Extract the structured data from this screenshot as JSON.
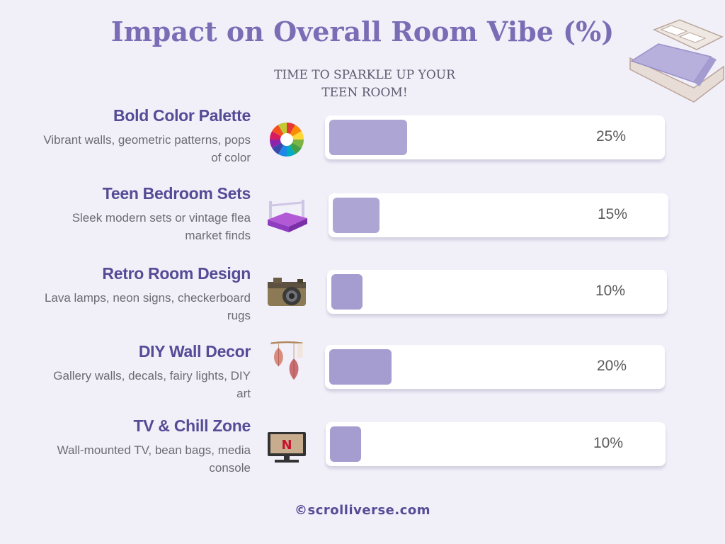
{
  "title": "Impact on Overall Room Vibe (%)",
  "subtitle": "TIME TO SPARKLE UP YOUR TEEN ROOM!",
  "footer": "©scrolliverse.com",
  "colors": {
    "bar": "#ada6d4",
    "bar_alt": "#a59dd0",
    "accent": "#554b96",
    "title": "#7a6db5",
    "background": "#f1eff8"
  },
  "chart_data": {
    "type": "bar",
    "orientation": "horizontal",
    "title": "Impact on Overall Room Vibe (%)",
    "categories": [
      "Bold Color Palette",
      "Teen Bedroom Sets",
      "Retro Room Design",
      "DIY Wall Decor",
      "TV & Chill Zone"
    ],
    "descriptions": [
      "Vibrant walls, geometric patterns, pops of color",
      "Sleek modern sets or vintage flea market finds",
      "Lava lamps, neon signs, checkerboard rugs",
      "Gallery walls, decals, fairy lights, DIY art",
      "Wall-mounted TV, bean bags, media console"
    ],
    "values": [
      25,
      15,
      10,
      20,
      10
    ],
    "labels": [
      "25%",
      "15%",
      "10%",
      "20%",
      "10%"
    ],
    "icons": [
      "color-wheel-icon",
      "bedroom-set-icon",
      "retro-camera-icon",
      "wall-hanging-icon",
      "tv-icon"
    ],
    "xlim": [
      0,
      100
    ]
  }
}
